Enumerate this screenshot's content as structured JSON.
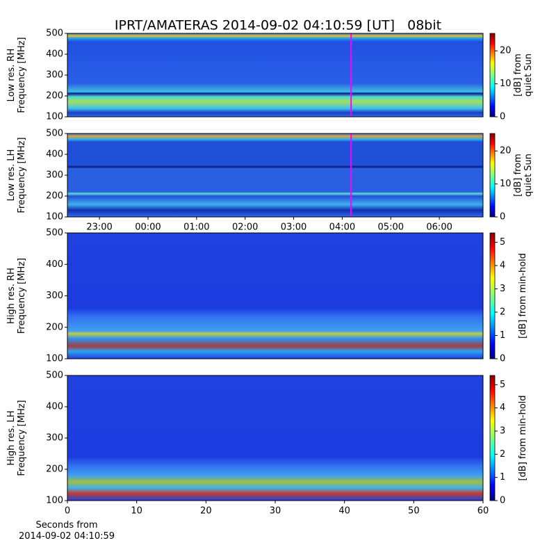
{
  "chart_data": [
    {
      "type": "spectrogram",
      "title": "IPRT/AMATERAS 2014-09-02 04:10:59 [UT]   08bit",
      "ylabel": [
        "Low res. RH",
        "Frequency [MHz]"
      ],
      "ylim": [
        100,
        500
      ],
      "yticks": [
        100,
        200,
        300,
        400,
        500
      ],
      "xlim": [
        22.34,
        30.9
      ],
      "marker_x": 28.183,
      "marker_color": "#ff00ff",
      "colormap": "jet",
      "colorbar_label": [
        "[dB] from",
        "quiet Sun"
      ],
      "clim": [
        0,
        25.3
      ],
      "cticks": [
        0,
        10,
        20
      ]
    },
    {
      "type": "spectrogram",
      "ylabel": [
        "Low res. LH",
        "Frequency [MHz]"
      ],
      "ylim": [
        100,
        500
      ],
      "yticks": [
        100,
        200,
        300,
        400,
        500
      ],
      "xlim": [
        22.34,
        30.9
      ],
      "marker_x": 28.183,
      "marker_color": "#ff00ff",
      "colormap": "jet",
      "xticks": [
        {
          "value": 23,
          "label": "23:00"
        },
        {
          "value": 24,
          "label": "00:00"
        },
        {
          "value": 25,
          "label": "01:00"
        },
        {
          "value": 26,
          "label": "02:00"
        },
        {
          "value": 27,
          "label": "03:00"
        },
        {
          "value": 28,
          "label": "04:00"
        },
        {
          "value": 29,
          "label": "05:00"
        },
        {
          "value": 30,
          "label": "06:00"
        }
      ],
      "colorbar_label": [
        "[dB] from",
        "quiet Sun"
      ],
      "clim": [
        0,
        25.3
      ],
      "cticks": [
        0,
        10,
        20
      ]
    },
    {
      "type": "spectrogram",
      "ylabel": [
        "High res. RH",
        "Frequency [MHz]"
      ],
      "ylim": [
        100,
        500
      ],
      "yticks": [
        100,
        200,
        300,
        400,
        500
      ],
      "xlim": [
        0,
        60
      ],
      "colormap": "jet",
      "colorbar_label": [
        "[dB] from min-hold"
      ],
      "clim": [
        0,
        5.4
      ],
      "cticks": [
        0,
        1,
        2,
        3,
        4,
        5
      ]
    },
    {
      "type": "spectrogram",
      "ylabel": [
        "High res. LH",
        "Frequency [MHz]"
      ],
      "ylim": [
        100,
        500
      ],
      "yticks": [
        100,
        200,
        300,
        400,
        500
      ],
      "xlim": [
        0,
        60
      ],
      "xticks": [
        0,
        10,
        20,
        30,
        40,
        50,
        60
      ],
      "xlabel": [
        "Seconds from",
        "2014-09-02 04:10:59"
      ],
      "colormap": "jet",
      "colorbar_label": [
        "[dB] from min-hold"
      ],
      "clim": [
        0,
        5.4
      ],
      "cticks": [
        0,
        1,
        2,
        3,
        4,
        5
      ]
    }
  ]
}
